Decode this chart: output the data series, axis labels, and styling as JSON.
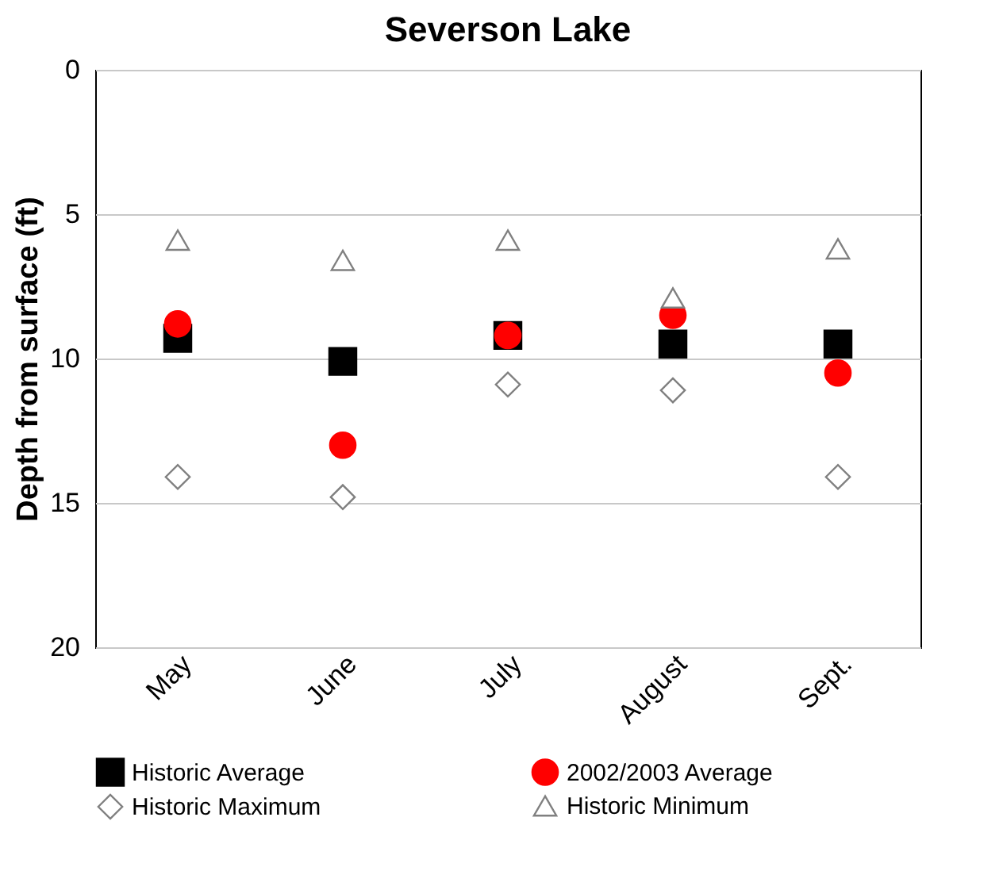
{
  "chart_data": {
    "type": "scatter",
    "title": "Severson Lake",
    "ylabel": "Depth from surface (ft)",
    "categories": [
      "May",
      "June",
      "July",
      "August",
      "Sept."
    ],
    "series": [
      {
        "name": "Historic Average",
        "color": "#000000",
        "marker": "square",
        "values": [
          9.3,
          10.1,
          9.2,
          9.5,
          9.5
        ]
      },
      {
        "name": "2002/2003 Average",
        "color": "#ff0000",
        "marker": "circle",
        "values": [
          8.8,
          13.0,
          9.2,
          8.5,
          10.5
        ]
      },
      {
        "name": "Historic Maximum",
        "color": "#808080",
        "marker": "diamond",
        "values": [
          14.1,
          14.8,
          10.9,
          11.1,
          14.1
        ]
      },
      {
        "name": "Historic Minimum",
        "color": "#808080",
        "marker": "triangle",
        "values": [
          5.9,
          6.6,
          5.9,
          7.9,
          6.2
        ]
      }
    ],
    "ylim": [
      20,
      0
    ],
    "yticks": [
      0,
      5,
      10,
      15,
      20
    ],
    "grid": "y",
    "legend": "bottom"
  }
}
